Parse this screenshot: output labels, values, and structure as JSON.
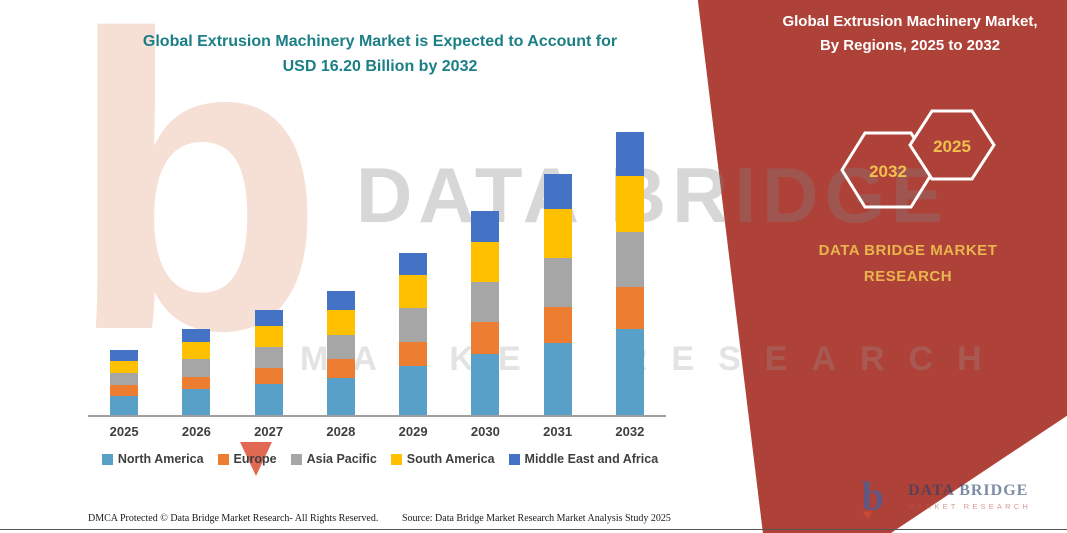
{
  "colors": {
    "panel_red": "#AF4238",
    "title_teal": "#1B7F86",
    "badge_yellow": "#F0C04F",
    "brand_yellow": "#E9B54E",
    "axis_gray": "#9E9E9E",
    "label_gray": "#3F3F3F"
  },
  "header": {
    "title_line1": "Global Extrusion Machinery Market is Expected to Account for",
    "title_line2": "USD 16.20 Billion by 2032"
  },
  "right_panel": {
    "heading_line1": "Global Extrusion Machinery Market,",
    "heading_line2": "By Regions, 2025 to 2032",
    "badge_back_label": "2032",
    "badge_front_label": "2025",
    "brand_line1": "DATA BRIDGE MARKET",
    "brand_line2": "RESEARCH"
  },
  "chart_data": {
    "type": "bar",
    "stacked": true,
    "title": "Global Extrusion Machinery Market is Expected to Account for USD 16.20 Billion by 2032",
    "value_unit": "USD Billion",
    "note": "segment values estimated from bar heights; 2032 total anchored to USD 16.20 Billion from title",
    "categories": [
      "2025",
      "2026",
      "2027",
      "2028",
      "2029",
      "2030",
      "2031",
      "2032"
    ],
    "series": [
      {
        "name": "North America",
        "color": "#58A0C8",
        "values": [
          1.1,
          1.5,
          1.8,
          2.1,
          2.8,
          3.5,
          4.1,
          4.9
        ]
      },
      {
        "name": "Europe",
        "color": "#ED7D31",
        "values": [
          0.6,
          0.7,
          0.9,
          1.1,
          1.4,
          1.8,
          2.1,
          2.4
        ]
      },
      {
        "name": "Asia Pacific",
        "color": "#A6A6A6",
        "values": [
          0.7,
          1.0,
          1.2,
          1.4,
          1.9,
          2.3,
          2.8,
          3.2
        ]
      },
      {
        "name": "South America",
        "color": "#FFC000",
        "values": [
          0.7,
          1.0,
          1.2,
          1.4,
          1.9,
          2.3,
          2.8,
          3.2
        ]
      },
      {
        "name": "Middle East and Africa",
        "color": "#4472C4",
        "values": [
          0.6,
          0.7,
          0.9,
          1.1,
          1.3,
          1.8,
          2.0,
          2.5
        ]
      }
    ],
    "totals": [
      3.7,
      4.9,
      6.0,
      7.1,
      9.3,
      11.7,
      13.8,
      16.2
    ],
    "ylim": [
      0,
      17
    ],
    "grid": false,
    "legend_position": "bottom"
  },
  "watermark": {
    "logo_letter": "b",
    "big_text": "DATA BRIDGE",
    "small_text": "MARKET RESEARCH"
  },
  "footer": {
    "dmca": "DMCA Protected © Data Bridge Market Research-  All Rights Reserved.",
    "source": "Source: Data Bridge Market Research  Market Analysis Study 2025"
  },
  "logo": {
    "letter": "b",
    "name_line1": "DATA BRIDGE",
    "name_line2": "MARKET RESEARCH"
  }
}
